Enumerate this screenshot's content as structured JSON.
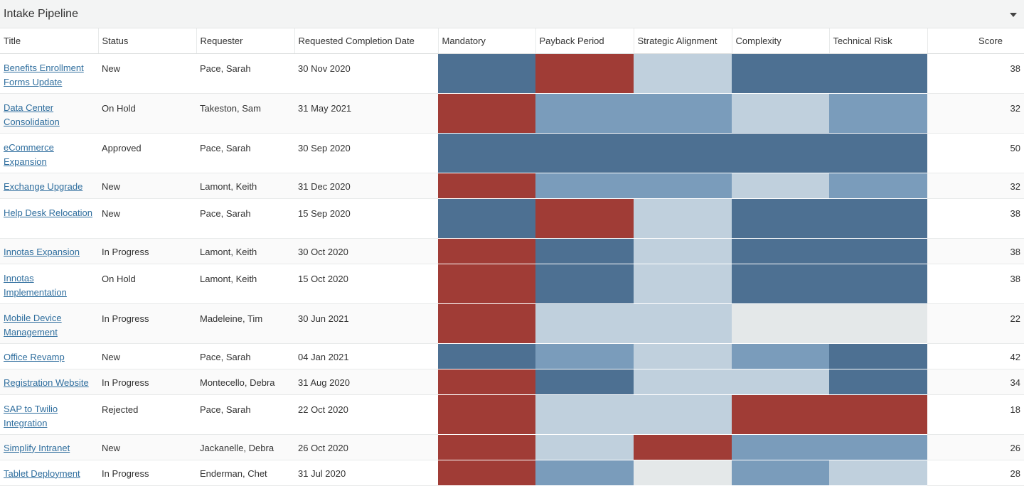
{
  "panel": {
    "title": "Intake Pipeline",
    "toggle_icon": "chevron-down-icon"
  },
  "columns": {
    "title": "Title",
    "status": "Status",
    "requester": "Requester",
    "date": "Requested Completion Date",
    "mandatory": "Mandatory",
    "payback": "Payback Period",
    "strategic": "Strategic Alignment",
    "complexity": "Complexity",
    "risk": "Technical Risk",
    "score": "Score"
  },
  "heat_colors": {
    "high": "#4d7092",
    "med": "#7a9cbb",
    "low": "#c0d0dd",
    "none": "#e4e8e9",
    "red": "#a03c36"
  },
  "rows": [
    {
      "title": "Benefits Enrollment Forms Update",
      "status": "New",
      "requester": "Pace, Sarah",
      "date": "30 Nov 2020",
      "heat": [
        "high",
        "red",
        "low",
        "high",
        "high"
      ],
      "score": "38",
      "tall": true
    },
    {
      "title": "Data Center Consolidation",
      "status": "On Hold",
      "requester": "Takeston, Sam",
      "date": "31 May 2021",
      "heat": [
        "red",
        "med",
        "med",
        "low",
        "med"
      ],
      "score": "32",
      "tall": true
    },
    {
      "title": "eCommerce Expansion",
      "status": "Approved",
      "requester": "Pace, Sarah",
      "date": "30 Sep 2020",
      "heat": [
        "high",
        "high",
        "high",
        "high",
        "high"
      ],
      "score": "50",
      "tall": true
    },
    {
      "title": "Exchange Upgrade",
      "status": "New",
      "requester": "Lamont, Keith",
      "date": "31 Dec 2020",
      "heat": [
        "red",
        "med",
        "med",
        "low",
        "med"
      ],
      "score": "32",
      "tall": false
    },
    {
      "title": "Help Desk Relocation",
      "status": "New",
      "requester": "Pace, Sarah",
      "date": "15 Sep 2020",
      "heat": [
        "high",
        "red",
        "low",
        "high",
        "high"
      ],
      "score": "38",
      "tall": true
    },
    {
      "title": "Innotas Expansion",
      "status": "In Progress",
      "requester": "Lamont, Keith",
      "date": "30 Oct 2020",
      "heat": [
        "red",
        "high",
        "low",
        "high",
        "high"
      ],
      "score": "38",
      "tall": false
    },
    {
      "title": "Innotas Implementation",
      "status": "On Hold",
      "requester": "Lamont, Keith",
      "date": "15 Oct 2020",
      "heat": [
        "red",
        "high",
        "low",
        "high",
        "high"
      ],
      "score": "38",
      "tall": true
    },
    {
      "title": "Mobile Device Management",
      "status": "In Progress",
      "requester": "Madeleine, Tim",
      "date": "30 Jun 2021",
      "heat": [
        "red",
        "low",
        "low",
        "none",
        "none"
      ],
      "score": "22",
      "tall": true
    },
    {
      "title": "Office Revamp",
      "status": "New",
      "requester": "Pace, Sarah",
      "date": "04 Jan 2021",
      "heat": [
        "high",
        "med",
        "low",
        "med",
        "high"
      ],
      "score": "42",
      "tall": false
    },
    {
      "title": "Registration Website",
      "status": "In Progress",
      "requester": "Montecello, Debra",
      "date": "31 Aug 2020",
      "heat": [
        "red",
        "high",
        "low",
        "low",
        "high"
      ],
      "score": "34",
      "tall": false
    },
    {
      "title": "SAP to Twilio Integration",
      "status": "Rejected",
      "requester": "Pace, Sarah",
      "date": "22 Oct 2020",
      "heat": [
        "red",
        "low",
        "low",
        "red",
        "red"
      ],
      "score": "18",
      "tall": true
    },
    {
      "title": "Simplify Intranet",
      "status": "New",
      "requester": "Jackanelle, Debra",
      "date": "26 Oct 2020",
      "heat": [
        "red",
        "low",
        "red",
        "med",
        "med"
      ],
      "score": "26",
      "tall": false
    },
    {
      "title": "Tablet Deployment",
      "status": "In Progress",
      "requester": "Enderman, Chet",
      "date": "31 Jul 2020",
      "heat": [
        "red",
        "med",
        "none",
        "med",
        "low"
      ],
      "score": "28",
      "tall": false
    }
  ]
}
